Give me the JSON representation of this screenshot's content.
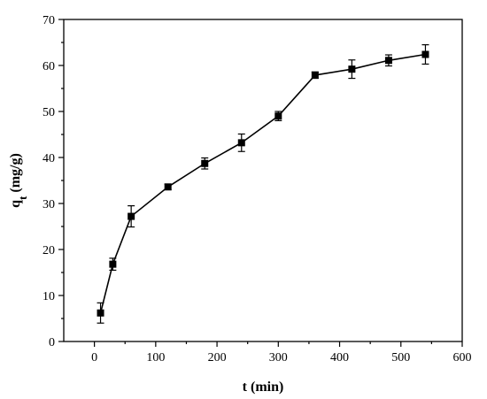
{
  "chart_data": {
    "type": "scatter",
    "xlabel": "t (min)",
    "ylabel_main": "q",
    "ylabel_sub": "t",
    "ylabel_unit": "(mg/g)",
    "xlim": [
      -50,
      600
    ],
    "ylim": [
      0,
      70
    ],
    "xticks": [
      0,
      100,
      200,
      300,
      400,
      500,
      600
    ],
    "yticks": [
      0,
      10,
      20,
      30,
      40,
      50,
      60,
      70
    ],
    "grid": false,
    "legend": "none",
    "color": "#000000",
    "marker": "square",
    "connected": true,
    "series": [
      {
        "x": [
          10,
          30,
          60,
          120,
          180,
          240,
          300,
          360,
          420,
          480,
          540
        ],
        "y": [
          6.2,
          16.8,
          27.2,
          33.6,
          38.7,
          43.2,
          49.0,
          57.9,
          59.2,
          61.1,
          62.4
        ],
        "err": [
          2.2,
          1.3,
          2.3,
          0.6,
          1.2,
          1.9,
          1.0,
          0.7,
          2.0,
          1.2,
          2.1
        ]
      }
    ]
  }
}
